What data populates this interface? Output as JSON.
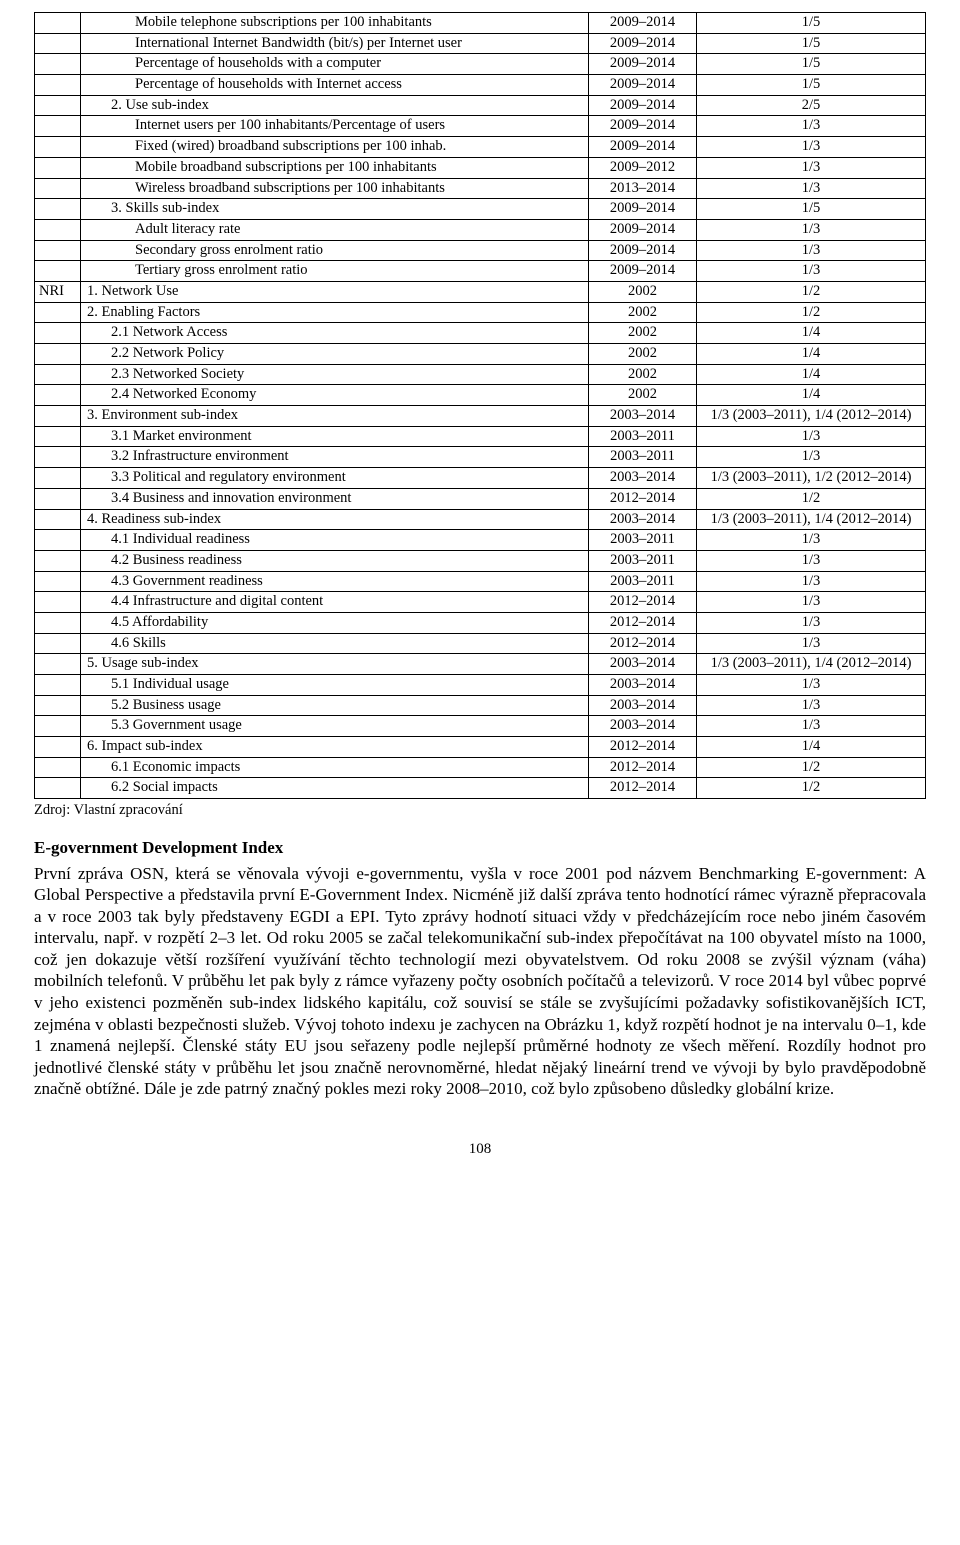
{
  "table": {
    "rows": [
      {
        "group": "",
        "indicator": "Mobile telephone subscriptions per 100 inhabitants",
        "years": "2009–2014",
        "weight": "1/5",
        "indent": 2
      },
      {
        "group": "",
        "indicator": "International Internet Bandwidth (bit/s) per Internet user",
        "years": "2009–2014",
        "weight": "1/5",
        "indent": 2
      },
      {
        "group": "",
        "indicator": "Percentage of households with a computer",
        "years": "2009–2014",
        "weight": "1/5",
        "indent": 2
      },
      {
        "group": "",
        "indicator": "Percentage of households with Internet access",
        "years": "2009–2014",
        "weight": "1/5",
        "indent": 2
      },
      {
        "group": "",
        "indicator": "2. Use sub-index",
        "years": "2009–2014",
        "weight": "2/5",
        "indent": 1
      },
      {
        "group": "",
        "indicator": "Internet users per 100 inhabitants/Percentage of users",
        "years": "2009–2014",
        "weight": "1/3",
        "indent": 2
      },
      {
        "group": "",
        "indicator": "Fixed (wired) broadband subscriptions per 100 inhab.",
        "years": "2009–2014",
        "weight": "1/3",
        "indent": 2
      },
      {
        "group": "",
        "indicator": "Mobile broadband subscriptions per 100 inhabitants",
        "years": "2009–2012",
        "weight": "1/3",
        "indent": 2
      },
      {
        "group": "",
        "indicator": "Wireless broadband subscriptions per 100 inhabitants",
        "years": "2013–2014",
        "weight": "1/3",
        "indent": 2
      },
      {
        "group": "",
        "indicator": "3. Skills sub-index",
        "years": "2009–2014",
        "weight": "1/5",
        "indent": 1
      },
      {
        "group": "",
        "indicator": "Adult literacy rate",
        "years": "2009–2014",
        "weight": "1/3",
        "indent": 2
      },
      {
        "group": "",
        "indicator": "Secondary gross enrolment ratio",
        "years": "2009–2014",
        "weight": "1/3",
        "indent": 2
      },
      {
        "group": "",
        "indicator": "Tertiary gross enrolment ratio",
        "years": "2009–2014",
        "weight": "1/3",
        "indent": 2
      },
      {
        "group": "NRI",
        "indicator": "1. Network Use",
        "years": "2002",
        "weight": "1/2",
        "indent": 0
      },
      {
        "group": "",
        "indicator": "2. Enabling Factors",
        "years": "2002",
        "weight": "1/2",
        "indent": 0
      },
      {
        "group": "",
        "indicator": "2.1 Network Access",
        "years": "2002",
        "weight": "1/4",
        "indent": 1
      },
      {
        "group": "",
        "indicator": "2.2 Network Policy",
        "years": "2002",
        "weight": "1/4",
        "indent": 1
      },
      {
        "group": "",
        "indicator": "2.3 Networked Society",
        "years": "2002",
        "weight": "1/4",
        "indent": 1
      },
      {
        "group": "",
        "indicator": "2.4 Networked Economy",
        "years": "2002",
        "weight": "1/4",
        "indent": 1
      },
      {
        "group": "",
        "indicator": "3. Environment sub-index",
        "years": "2003–2014",
        "weight": "1/3 (2003–2011), 1/4 (2012–2014)",
        "indent": 0
      },
      {
        "group": "",
        "indicator": "3.1 Market environment",
        "years": "2003–2011",
        "weight": "1/3",
        "indent": 1
      },
      {
        "group": "",
        "indicator": "3.2 Infrastructure environment",
        "years": "2003–2011",
        "weight": "1/3",
        "indent": 1
      },
      {
        "group": "",
        "indicator": "3.3 Political and regulatory environment",
        "years": "2003–2014",
        "weight": "1/3 (2003–2011), 1/2 (2012–2014)",
        "indent": 1
      },
      {
        "group": "",
        "indicator": "3.4 Business and innovation environment",
        "years": "2012–2014",
        "weight": "1/2",
        "indent": 1
      },
      {
        "group": "",
        "indicator": "4. Readiness sub-index",
        "years": "2003–2014",
        "weight": "1/3 (2003–2011), 1/4 (2012–2014)",
        "indent": 0
      },
      {
        "group": "",
        "indicator": "4.1 Individual readiness",
        "years": "2003–2011",
        "weight": "1/3",
        "indent": 1
      },
      {
        "group": "",
        "indicator": "4.2 Business readiness",
        "years": "2003–2011",
        "weight": "1/3",
        "indent": 1
      },
      {
        "group": "",
        "indicator": "4.3 Government readiness",
        "years": "2003–2011",
        "weight": "1/3",
        "indent": 1
      },
      {
        "group": "",
        "indicator": "4.4 Infrastructure and digital content",
        "years": "2012–2014",
        "weight": "1/3",
        "indent": 1
      },
      {
        "group": "",
        "indicator": "4.5 Affordability",
        "years": "2012–2014",
        "weight": "1/3",
        "indent": 1
      },
      {
        "group": "",
        "indicator": "4.6 Skills",
        "years": "2012–2014",
        "weight": "1/3",
        "indent": 1
      },
      {
        "group": "",
        "indicator": "5. Usage sub-index",
        "years": "2003–2014",
        "weight": "1/3 (2003–2011), 1/4 (2012–2014)",
        "indent": 0
      },
      {
        "group": "",
        "indicator": "5.1 Individual usage",
        "years": "2003–2014",
        "weight": "1/3",
        "indent": 1
      },
      {
        "group": "",
        "indicator": "5.2 Business usage",
        "years": "2003–2014",
        "weight": "1/3",
        "indent": 1
      },
      {
        "group": "",
        "indicator": "5.3 Government usage",
        "years": "2003–2014",
        "weight": "1/3",
        "indent": 1
      },
      {
        "group": "",
        "indicator": "6. Impact sub-index",
        "years": "2012–2014",
        "weight": "1/4",
        "indent": 0
      },
      {
        "group": "",
        "indicator": "6.1 Economic impacts",
        "years": "2012–2014",
        "weight": "1/2",
        "indent": 1
      },
      {
        "group": "",
        "indicator": "6.2 Social impacts",
        "years": "2012–2014",
        "weight": "1/2",
        "indent": 1
      }
    ]
  },
  "source_label": "Zdroj: Vlastní zpracování",
  "heading": "E-government Development Index",
  "paragraph": "První zpráva OSN, která se věnovala vývoji e-governmentu, vyšla v roce 2001 pod názvem Benchmarking E-government: A Global Perspective a představila první E-Government Index. Nicméně již další zpráva tento hodnotící rámec výrazně přepracovala a v roce 2003 tak byly představeny EGDI a EPI. Tyto zprávy hodnotí situaci vždy v předcházejícím roce nebo jiném časovém intervalu, např. v rozpětí 2–3 let. Od roku 2005 se začal telekomunikační sub-index přepočítávat na 100 obyvatel místo na 1000, což jen dokazuje větší rozšíření využívání těchto technologií mezi obyvatelstvem. Od roku 2008 se zvýšil význam (váha) mobilních telefonů. V průběhu let pak byly z rámce vyřazeny počty osobních počítačů a televizorů. V roce 2014 byl vůbec poprvé v jeho existenci pozměněn sub-index lidského kapitálu, což souvisí se stále se zvyšujícími požadavky sofistikovanějších ICT, zejména v oblasti bezpečnosti služeb. Vývoj tohoto indexu je zachycen na Obrázku 1, když rozpětí hodnot je na intervalu 0–1, kde 1 znamená nejlepší. Členské státy EU jsou seřazeny podle nejlepší průměrné hodnoty ze všech měření. Rozdíly hodnot pro jednotlivé členské státy v průběhu let jsou značně nerovnoměrné, hledat nějaký lineární trend ve vývoji by bylo pravděpodobně značně obtížné. Dále je zde patrný značný pokles mezi roky 2008–2010, což bylo způsobeno důsledky globální krize.",
  "page_number": "108"
}
